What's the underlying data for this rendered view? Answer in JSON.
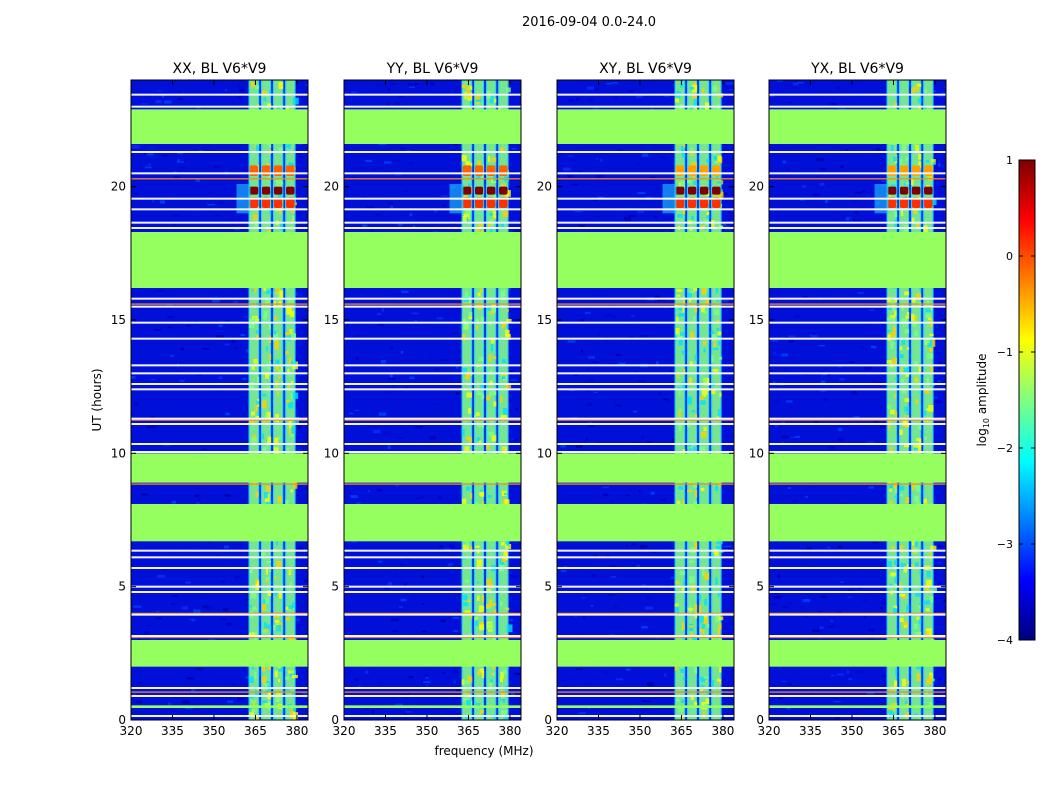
{
  "figure": {
    "suptitle": "2016-09-04 0.0-24.0",
    "ylabel": "UT (hours)",
    "xlabel": "frequency (MHz)"
  },
  "chart_data": {
    "type": "heatmap",
    "xlim": [
      320,
      384
    ],
    "ylim": [
      0,
      24
    ],
    "xticks": [
      320,
      335,
      350,
      365,
      380
    ],
    "xtick_labels": [
      "320",
      "335",
      "350",
      "365",
      "380"
    ],
    "yticks": [
      0,
      5,
      10,
      15,
      20
    ],
    "ytick_labels": [
      "0",
      "5",
      "10",
      "15",
      "20"
    ],
    "panels": [
      {
        "title": "XX, BL V6*V9",
        "burst": "strong"
      },
      {
        "title": "YY, BL V6*V9",
        "burst": "strong"
      },
      {
        "title": "XY, BL V6*V9",
        "burst": "medium"
      },
      {
        "title": "YX, BL V6*V9",
        "burst": "medium"
      }
    ],
    "flagged_hours": [
      [
        0.45,
        0.55
      ],
      [
        2.0,
        3.0
      ],
      [
        6.7,
        8.1
      ],
      [
        8.9,
        10.0
      ],
      [
        16.2,
        18.3
      ],
      [
        21.6,
        22.9
      ]
    ],
    "grid_gap_hours": [
      0.15,
      0.9,
      1.2,
      3.15,
      3.95,
      4.8,
      5.0,
      5.7,
      6.1,
      6.35,
      10.05,
      10.35,
      11.1,
      11.3,
      12.4,
      12.6,
      13.0,
      13.3,
      14.3,
      14.9,
      15.5,
      15.8,
      18.45,
      18.65,
      19.15,
      19.55,
      20.5,
      21.3,
      23.0,
      23.45
    ],
    "rfi_line_hours": [
      1.05,
      3.1,
      4.0,
      7.95,
      8.85,
      11.25,
      15.6,
      20.3
    ],
    "rfi_band_mhz": [
      [
        362.5,
        366.4
      ],
      [
        367.0,
        370.7
      ],
      [
        371.3,
        375.1
      ],
      [
        375.7,
        379.5
      ]
    ],
    "colorbar": {
      "label": "log10 amplitude",
      "min": -4,
      "max": 1,
      "ticks": [
        1,
        0,
        -1,
        -2,
        -3,
        -4
      ],
      "tick_labels": [
        "1",
        "0",
        "−1",
        "−2",
        "−3",
        "−4"
      ],
      "colors": [
        "#00007f",
        "#0000ff",
        "#007fff",
        "#00ffff",
        "#7fff7f",
        "#ffff00",
        "#ff7f00",
        "#ff0000",
        "#7f0000"
      ]
    }
  }
}
